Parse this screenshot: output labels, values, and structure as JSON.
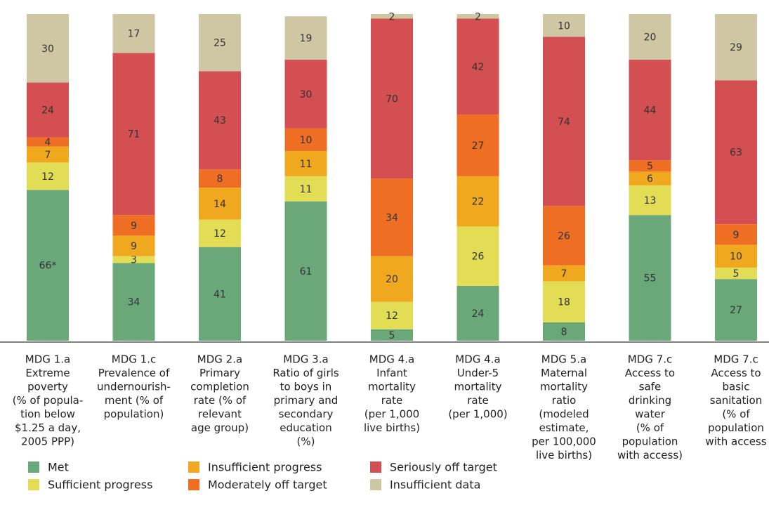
{
  "chart_data": {
    "type": "stacked_bar",
    "categories": [
      [
        "MDG 1.a",
        "Extreme",
        "poverty",
        "(% of popula-",
        "tion below",
        "$1.25 a day,",
        "2005 PPP)"
      ],
      [
        "MDG 1.c",
        "Prevalence of",
        "undernourish-",
        "ment (% of",
        "population)"
      ],
      [
        "MDG 2.a",
        "Primary",
        "completion",
        "rate (% of",
        "relevant",
        "age group)"
      ],
      [
        "MDG 3.a",
        "Ratio of girls",
        "to boys in",
        "primary and",
        "secondary",
        "education",
        "(%)"
      ],
      [
        "MDG 4.a",
        "Infant",
        "mortality",
        "rate",
        "(per 1,000",
        "live births)"
      ],
      [
        "MDG 4.a",
        "Under-5",
        "mortality",
        "rate",
        "(per 1,000)"
      ],
      [
        "MDG 5.a",
        "Maternal",
        "mortality",
        "ratio",
        "(modeled",
        "estimate,",
        "per 100,000",
        "live births)"
      ],
      [
        "MDG 7.c",
        "Access to",
        "safe",
        "drinking",
        "water",
        "(% of",
        "population",
        "with access)"
      ],
      [
        "MDG 7.c",
        "Access to",
        "basic",
        "sanitation",
        "(% of",
        "population",
        "with access"
      ]
    ],
    "series": [
      {
        "name": "Met",
        "color": "#6aa87a",
        "values": [
          66,
          34,
          41,
          61,
          5,
          24,
          8,
          55,
          27
        ],
        "value_labels": [
          "66*",
          "34",
          "41",
          "61",
          "5",
          "24",
          "8",
          "55",
          "27"
        ]
      },
      {
        "name": "Sufficient progress",
        "color": "#e3dc55",
        "values": [
          12,
          3,
          12,
          11,
          12,
          26,
          18,
          13,
          5
        ]
      },
      {
        "name": "Insufficient progress",
        "color": "#f0a91e",
        "values": [
          7,
          9,
          14,
          11,
          20,
          22,
          7,
          6,
          10
        ]
      },
      {
        "name": "Moderately off target",
        "color": "#ee6f24",
        "values": [
          4,
          9,
          8,
          10,
          34,
          27,
          26,
          5,
          9
        ]
      },
      {
        "name": "Seriously off target",
        "color": "#d34f51",
        "values": [
          24,
          71,
          43,
          30,
          70,
          42,
          74,
          44,
          63
        ]
      },
      {
        "name": "Insufficient data",
        "color": "#cfc7a3",
        "values": [
          30,
          17,
          25,
          19,
          2,
          2,
          10,
          20,
          29
        ]
      }
    ]
  }
}
